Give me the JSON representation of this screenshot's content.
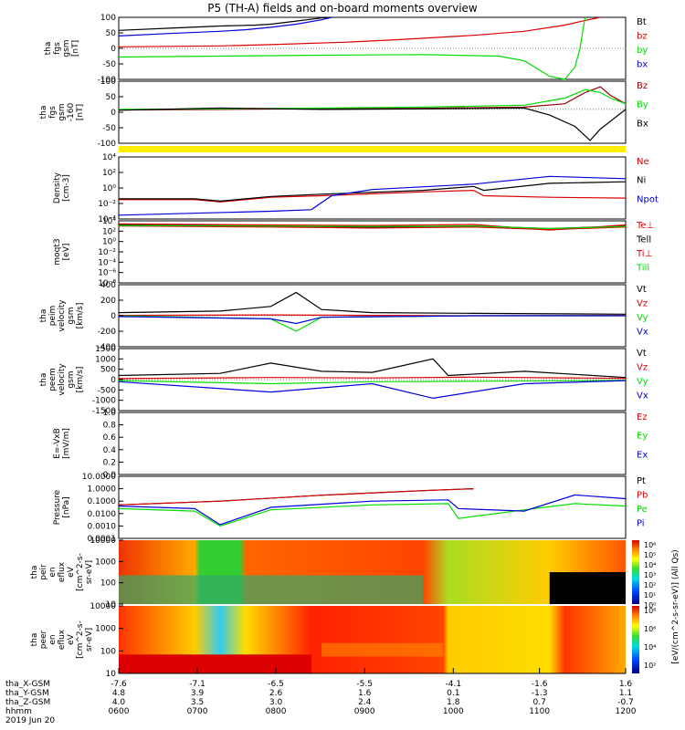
{
  "title": "P5 (TH-A) fields and on-board moments overview",
  "colors": {
    "black": "#000000",
    "red": "#dd0000",
    "green": "#00dd00",
    "blue": "#0000dd",
    "yellow": "#ffee00",
    "darkred": "#990000"
  },
  "chart_data": [
    {
      "type": "line",
      "ylabel": [
        "tha",
        "fgs",
        "gsm",
        "[nT]"
      ],
      "ylim": [
        -100,
        100
      ],
      "yticks": [
        "100",
        "50",
        "0",
        "-50",
        "-100"
      ],
      "series": [
        {
          "name": "Bt",
          "color": "#000000",
          "x": [
            0,
            0.1,
            0.2,
            0.27,
            0.3,
            0.35,
            0.4,
            0.42
          ],
          "y": [
            58,
            65,
            72,
            75,
            78,
            88,
            98,
            100
          ]
        },
        {
          "name": "bz",
          "color": "#dd0000",
          "x": [
            0,
            0.2,
            0.3,
            0.45,
            0.55,
            0.7,
            0.8,
            0.88,
            0.92,
            0.95
          ],
          "y": [
            5,
            8,
            12,
            20,
            28,
            42,
            55,
            75,
            90,
            100
          ]
        },
        {
          "name": "by",
          "color": "#00dd00",
          "x": [
            0,
            0.2,
            0.4,
            0.6,
            0.75,
            0.8,
            0.82,
            0.85,
            0.88,
            0.9,
            0.91,
            0.92
          ],
          "y": [
            -28,
            -25,
            -22,
            -20,
            -25,
            -40,
            -60,
            -90,
            -100,
            -60,
            0,
            100
          ]
        },
        {
          "name": "bx",
          "color": "#0000dd",
          "x": [
            0,
            0.1,
            0.2,
            0.25,
            0.3,
            0.35,
            0.4,
            0.42
          ],
          "y": [
            40,
            48,
            55,
            60,
            68,
            78,
            92,
            100
          ]
        }
      ]
    },
    {
      "type": "line",
      "ylabel": [
        "tha",
        "fgs",
        "gsm",
        "-160",
        "[nT]"
      ],
      "ylim": [
        -120,
        100
      ],
      "yticks": [
        "100",
        "50",
        "0",
        "-50",
        "-100"
      ],
      "series": [
        {
          "name": "Bz",
          "color": "#990000",
          "x": [
            0,
            0.2,
            0.4,
            0.6,
            0.8,
            0.88,
            0.92,
            0.95,
            0.97,
            1
          ],
          "y": [
            -2,
            0,
            3,
            4,
            8,
            20,
            60,
            80,
            50,
            20
          ]
        },
        {
          "name": "By",
          "color": "#00dd00",
          "x": [
            0,
            0.2,
            0.4,
            0.6,
            0.8,
            0.88,
            0.92,
            0.95,
            0.97,
            1
          ],
          "y": [
            0,
            2,
            5,
            8,
            15,
            40,
            70,
            60,
            40,
            20
          ]
        },
        {
          "name": "Bx",
          "color": "#000000",
          "x": [
            0,
            0.2,
            0.4,
            0.6,
            0.8,
            0.85,
            0.9,
            0.93,
            0.95,
            1
          ],
          "y": [
            -3,
            5,
            0,
            2,
            5,
            -20,
            -60,
            -110,
            -70,
            0
          ]
        }
      ]
    },
    {
      "type": "line",
      "ylabel": [
        "Density",
        "[cm-3]"
      ],
      "ylog": true,
      "ylim": [
        -4,
        4
      ],
      "yticks": [
        "10⁴",
        "10²",
        "10⁰",
        "10⁻²",
        "10⁻⁴"
      ],
      "series": [
        {
          "name": "Ne",
          "color": "#dd0000",
          "x": [
            0,
            0.15,
            0.2,
            0.25,
            0.3,
            0.4,
            0.6,
            0.7,
            0.72,
            0.85,
            1
          ],
          "y": [
            -1.5,
            -1.5,
            -1.8,
            -1.5,
            -1.2,
            -1.0,
            -0.5,
            -0.3,
            -1.0,
            -1.2,
            -1.3
          ]
        },
        {
          "name": "Ni",
          "color": "#000000",
          "x": [
            0,
            0.15,
            0.2,
            0.25,
            0.3,
            0.4,
            0.6,
            0.7,
            0.72,
            0.85,
            1
          ],
          "y": [
            -1.4,
            -1.4,
            -1.7,
            -1.4,
            -1.1,
            -0.8,
            -0.3,
            0.2,
            -0.3,
            0.6,
            0.8
          ]
        },
        {
          "name": "Npot",
          "color": "#0000dd",
          "x": [
            0,
            0.3,
            0.38,
            0.42,
            0.5,
            0.7,
            0.85,
            1
          ],
          "y": [
            -3.5,
            -3.0,
            -2.8,
            -1.0,
            -0.2,
            0.5,
            1.5,
            1.2
          ]
        }
      ]
    },
    {
      "type": "line",
      "ylabel": [
        "moqt3",
        "[eV]"
      ],
      "ylog": true,
      "ylim": [
        -8,
        4
      ],
      "yticks": [
        "10⁴",
        "10²",
        "10⁰",
        "10⁻²",
        "10⁻⁴",
        "10⁻⁶",
        "10⁻⁸"
      ],
      "series": [
        {
          "name": "Te⊥",
          "color": "#dd0000",
          "x": [
            0,
            0.3,
            0.5,
            0.7,
            0.85,
            1
          ],
          "y": [
            3.0,
            2.8,
            2.6,
            2.8,
            2.3,
            2.8
          ]
        },
        {
          "name": "Tell",
          "color": "#000000",
          "x": [
            0,
            0.3,
            0.5,
            0.7,
            0.85,
            1
          ],
          "y": [
            3.2,
            3.0,
            2.8,
            3.0,
            2.5,
            3.0
          ]
        },
        {
          "name": "Ti⊥",
          "color": "#dd0000",
          "x": [
            0,
            0.3,
            0.5,
            0.7,
            0.85,
            1
          ],
          "y": [
            3.4,
            3.2,
            3.1,
            3.3,
            2.2,
            3.2
          ]
        },
        {
          "name": "Till",
          "color": "#00dd00",
          "x": [
            0,
            0.3,
            0.5,
            0.7,
            0.85,
            1
          ],
          "y": [
            3.1,
            3.0,
            2.9,
            3.0,
            2.5,
            2.9
          ]
        }
      ]
    },
    {
      "type": "line",
      "ylabel": [
        "tha",
        "peim",
        "velocity",
        "gsm",
        "[km/s]"
      ],
      "ylim": [
        -400,
        400
      ],
      "yticks": [
        "400",
        "200",
        "0",
        "-200",
        "-400"
      ],
      "series": [
        {
          "name": "Vt",
          "color": "#000000",
          "x": [
            0,
            0.2,
            0.3,
            0.35,
            0.4,
            0.5,
            0.7,
            1
          ],
          "y": [
            40,
            60,
            120,
            300,
            80,
            40,
            30,
            20
          ]
        },
        {
          "name": "Vz",
          "color": "#dd0000",
          "x": [
            0,
            0.3,
            0.5,
            0.7,
            1
          ],
          "y": [
            5,
            10,
            5,
            0,
            5
          ]
        },
        {
          "name": "Vy",
          "color": "#00dd00",
          "x": [
            0,
            0.3,
            0.35,
            0.4,
            0.7,
            1
          ],
          "y": [
            0,
            -40,
            -200,
            -20,
            0,
            0
          ]
        },
        {
          "name": "Vx",
          "color": "#0000dd",
          "x": [
            0,
            0.3,
            0.35,
            0.4,
            0.7,
            1
          ],
          "y": [
            -10,
            -40,
            -100,
            -20,
            0,
            0
          ]
        }
      ]
    },
    {
      "type": "line",
      "ylabel": [
        "tha",
        "peem",
        "velocity",
        "gsm",
        "[km/s]"
      ],
      "ylim": [
        -1500,
        1500
      ],
      "yticks": [
        "1500",
        "1000",
        "500",
        "0",
        "-500",
        "-1000",
        "-1500"
      ],
      "series": [
        {
          "name": "Vt",
          "color": "#000000",
          "x": [
            0,
            0.2,
            0.3,
            0.4,
            0.5,
            0.62,
            0.65,
            0.8,
            1
          ],
          "y": [
            200,
            300,
            800,
            400,
            350,
            1000,
            200,
            400,
            100
          ]
        },
        {
          "name": "Vz",
          "color": "#dd0000",
          "x": [
            0,
            0.3,
            0.5,
            0.7,
            1
          ],
          "y": [
            50,
            100,
            80,
            120,
            60
          ]
        },
        {
          "name": "Vy",
          "color": "#00dd00",
          "x": [
            0,
            0.3,
            0.5,
            0.7,
            1
          ],
          "y": [
            -50,
            -200,
            -100,
            -80,
            -40
          ]
        },
        {
          "name": "Vx",
          "color": "#0000dd",
          "x": [
            0,
            0.3,
            0.5,
            0.62,
            0.8,
            1
          ],
          "y": [
            -100,
            -600,
            -200,
            -900,
            -200,
            -50
          ]
        }
      ]
    },
    {
      "type": "line",
      "ylabel": [
        "E=-VxB",
        "[mV/m]"
      ],
      "ylim": [
        0,
        1
      ],
      "yticks": [
        "1.0",
        "0.8",
        "0.6",
        "0.4",
        "0.2",
        "0.0"
      ],
      "series": [
        {
          "name": "Ez",
          "color": "#dd0000",
          "x": [],
          "y": []
        },
        {
          "name": "Ey",
          "color": "#00dd00",
          "x": [],
          "y": []
        },
        {
          "name": "Ex",
          "color": "#0000dd",
          "x": [],
          "y": []
        }
      ]
    },
    {
      "type": "line",
      "ylabel": [
        "Pressure",
        "[nPa]"
      ],
      "ylog": true,
      "ylim": [
        -4,
        1
      ],
      "yticks": [
        "10.0000",
        "1.0000",
        "0.1000",
        "0.0100",
        "0.0010",
        "0.0001"
      ],
      "series": [
        {
          "name": "Pt",
          "color": "#000000",
          "x": [
            0,
            0.2,
            0.4,
            0.6,
            0.7
          ],
          "y": [
            0.05,
            0.1,
            0.3,
            0.7,
            1.0
          ]
        },
        {
          "name": "Pb",
          "color": "#dd0000",
          "x": [
            0,
            0.2,
            0.4,
            0.6,
            0.7
          ],
          "y": [
            0.05,
            0.1,
            0.3,
            0.7,
            1.0
          ]
        },
        {
          "name": "Pe",
          "color": "#00dd00",
          "x": [
            0,
            0.15,
            0.2,
            0.3,
            0.5,
            0.65,
            0.67,
            0.8,
            0.9,
            1
          ],
          "y": [
            -1.6,
            -1.8,
            -3.0,
            -1.7,
            -1.3,
            -1.2,
            -2.4,
            -1.7,
            -1.2,
            -1.4
          ]
        },
        {
          "name": "Pi",
          "color": "#0000dd",
          "x": [
            0,
            0.15,
            0.2,
            0.3,
            0.5,
            0.65,
            0.67,
            0.8,
            0.9,
            1
          ],
          "y": [
            -1.4,
            -1.6,
            -2.9,
            -1.5,
            -1.0,
            -0.9,
            -1.6,
            -1.8,
            -0.5,
            -0.8
          ]
        }
      ]
    },
    {
      "type": "heatmap",
      "ylabel": [
        "tha",
        "peir",
        "en",
        "eflux",
        "eV",
        "[cm^2-s-",
        "sr-eV]"
      ],
      "yticks": [
        "10000",
        "1000",
        "100",
        "10"
      ]
    },
    {
      "type": "heatmap",
      "ylabel": [
        "tha",
        "peer",
        "en",
        "eflux",
        "eV",
        "[cm^2-s-",
        "sr-eV]"
      ],
      "yticks": [
        "10000",
        "1000",
        "100",
        "10"
      ]
    }
  ],
  "colorbar": {
    "label": "[eV/(cm^2-s-sr-eV)] (All Qs)",
    "ticks_top": [
      "10⁶",
      "10⁵",
      "10⁴",
      "10³",
      "10²",
      "10¹",
      "10⁰"
    ],
    "ticks_bottom": [
      "10⁸",
      "10⁶",
      "10⁴",
      "10²"
    ]
  },
  "xaxis": {
    "row_labels": [
      "tha_X-GSM",
      "tha_Y-GSM",
      "tha_Z-GSM",
      "hhmm",
      "2019 Jun 20"
    ],
    "columns": [
      [
        "-7.6",
        "4.8",
        "4.0",
        "0600"
      ],
      [
        "-7.1",
        "3.9",
        "3.5",
        "0700"
      ],
      [
        "-6.5",
        "2.6",
        "3.0",
        "0800"
      ],
      [
        "-5.5",
        "1.6",
        "2.4",
        "0900"
      ],
      [
        "-4.1",
        "0.1",
        "1.8",
        "1000"
      ],
      [
        "-1.6",
        "-1.3",
        "0.7",
        "1100"
      ],
      [
        "1.6",
        "1.1",
        "-0.7",
        "1200"
      ]
    ]
  }
}
